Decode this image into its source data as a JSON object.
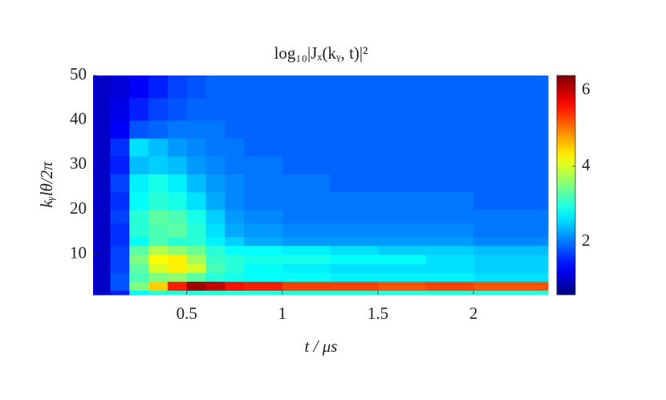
{
  "chart_data": {
    "type": "heatmap",
    "title": "log₁₀|Jₓ(kᵧ, t)|²",
    "x_label": "t / μs",
    "y_label": "kᵧlθ/2π",
    "colormap": "jet",
    "x": [
      0.01,
      0.1,
      0.2,
      0.3,
      0.4,
      0.5,
      0.6,
      0.7,
      0.8,
      1.0,
      1.25,
      1.5,
      1.75,
      2.0,
      2.39
    ],
    "y": [
      1,
      2,
      4,
      6,
      8,
      10,
      12,
      14,
      17,
      20,
      24,
      28,
      32,
      36,
      40,
      45,
      50
    ],
    "z": [
      [
        1.0,
        1.5,
        2.8,
        3.0,
        3.0,
        3.0,
        3.0,
        3.0,
        3.0,
        3.0,
        3.0,
        3.0,
        3.0,
        3.0
      ],
      [
        1.0,
        1.8,
        3.5,
        4.5,
        5.5,
        6.2,
        6.0,
        5.6,
        5.5,
        5.3,
        5.3,
        5.2,
        5.3,
        5.2
      ],
      [
        1.0,
        1.8,
        3.2,
        3.5,
        3.6,
        3.3,
        3.0,
        2.9,
        2.8,
        2.8,
        2.7,
        2.7,
        2.7,
        2.6
      ],
      [
        1.0,
        1.7,
        3.3,
        4.0,
        4.3,
        4.0,
        3.2,
        3.0,
        2.8,
        2.7,
        2.6,
        2.6,
        2.6,
        2.5
      ],
      [
        1.0,
        1.7,
        3.5,
        4.2,
        4.3,
        3.7,
        3.1,
        3.0,
        2.9,
        2.9,
        2.8,
        2.8,
        2.6,
        2.5
      ],
      [
        1.0,
        1.7,
        3.3,
        3.8,
        3.6,
        3.4,
        3.0,
        2.8,
        2.8,
        2.7,
        2.6,
        2.5,
        2.5,
        2.4
      ],
      [
        1.0,
        1.6,
        2.8,
        3.2,
        3.0,
        3.0,
        2.7,
        2.5,
        2.3,
        2.2,
        2.2,
        2.2,
        2.2,
        2.1
      ],
      [
        1.0,
        1.6,
        3.0,
        3.2,
        3.3,
        3.0,
        2.6,
        2.3,
        2.2,
        2.1,
        2.1,
        2.1,
        2.1,
        2.0
      ],
      [
        1.0,
        1.7,
        3.0,
        3.3,
        3.2,
        2.9,
        2.5,
        2.2,
        2.1,
        2.0,
        2.0,
        2.0,
        2.0,
        2.0
      ],
      [
        1.0,
        1.6,
        2.8,
        3.0,
        2.9,
        2.6,
        2.3,
        2.1,
        2.0,
        2.0,
        2.0,
        2.0,
        2.0,
        1.9
      ],
      [
        1.0,
        1.7,
        2.7,
        2.9,
        2.7,
        2.4,
        2.2,
        2.1,
        2.0,
        2.0,
        1.9,
        1.9,
        1.9,
        1.9
      ],
      [
        1.0,
        1.5,
        2.4,
        2.5,
        2.4,
        2.2,
        2.1,
        2.0,
        2.0,
        1.9,
        1.9,
        1.9,
        1.9,
        1.9
      ],
      [
        1.0,
        1.6,
        2.6,
        2.4,
        2.2,
        2.1,
        2.0,
        2.0,
        1.9,
        1.9,
        1.9,
        1.9,
        1.9,
        1.9
      ],
      [
        1.0,
        1.3,
        1.8,
        1.9,
        2.0,
        2.0,
        2.0,
        1.9,
        1.9,
        1.9,
        1.9,
        1.9,
        1.9,
        1.9
      ],
      [
        1.0,
        1.2,
        1.5,
        1.7,
        1.8,
        1.9,
        1.9,
        1.9,
        1.9,
        1.9,
        1.9,
        1.9,
        1.9,
        1.9
      ],
      [
        1.0,
        1.1,
        1.3,
        1.5,
        1.7,
        1.8,
        1.9,
        1.9,
        1.9,
        1.9,
        1.9,
        1.9,
        1.9,
        1.9
      ]
    ],
    "xlim": [
      0.01,
      2.39
    ],
    "ylim": [
      1,
      50
    ],
    "xticks": [
      0.5,
      1,
      1.5,
      2
    ],
    "yticks": [
      10,
      20,
      30,
      40,
      50
    ],
    "clim": [
      0.6,
      6.4
    ],
    "cticks": [
      2,
      4,
      6
    ]
  }
}
